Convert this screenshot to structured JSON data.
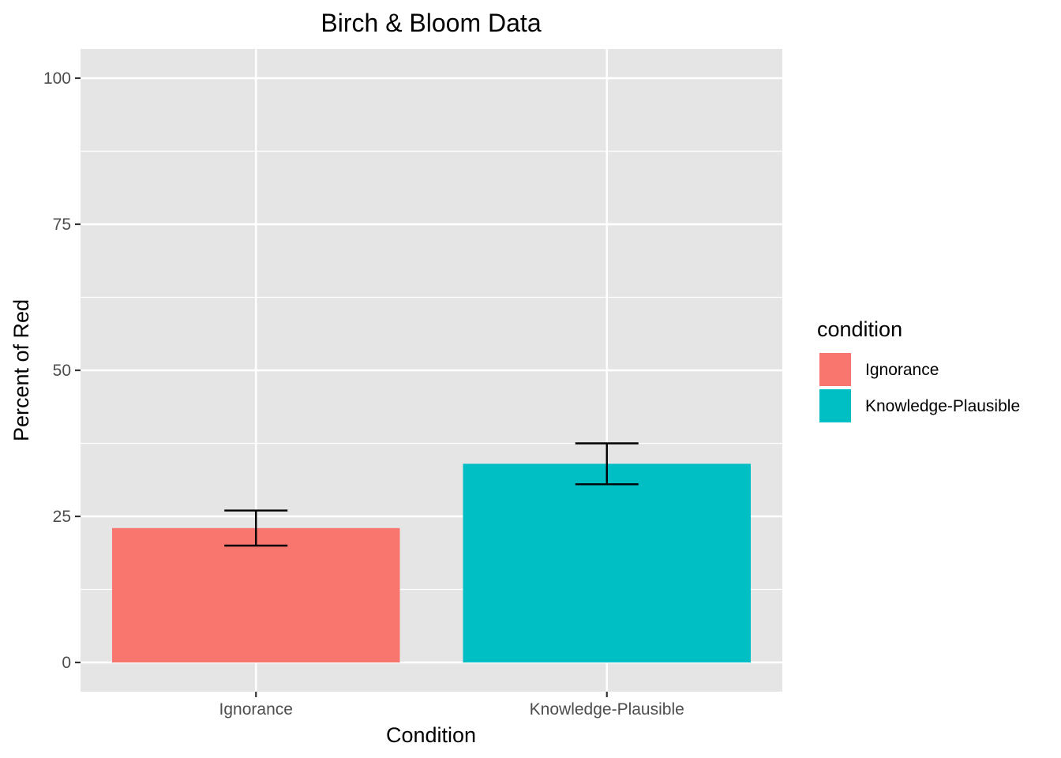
{
  "chart_data": {
    "type": "bar",
    "title": "Birch & Bloom Data",
    "xlabel": "Condition",
    "ylabel": "Percent of Red",
    "categories": [
      "Ignorance",
      "Knowledge-Plausible"
    ],
    "values": [
      23,
      34
    ],
    "error_bars": [
      {
        "low": 20,
        "high": 26
      },
      {
        "low": 30.5,
        "high": 37.5
      }
    ],
    "colors": [
      "#F8766D",
      "#00BFC4"
    ],
    "ylim": [
      -5,
      105
    ],
    "yticks": [
      0,
      25,
      50,
      75,
      100
    ],
    "ytick_labels": [
      "0",
      "25",
      "50",
      "75",
      "100"
    ],
    "grid": true,
    "legend": {
      "title": "condition",
      "position": "right",
      "entries": [
        {
          "label": "Ignorance",
          "color": "#F8766D"
        },
        {
          "label": "Knowledge-Plausible",
          "color": "#00BFC4"
        }
      ]
    },
    "panel_background": "#E5E5E5",
    "grid_color": "#FFFFFF"
  }
}
